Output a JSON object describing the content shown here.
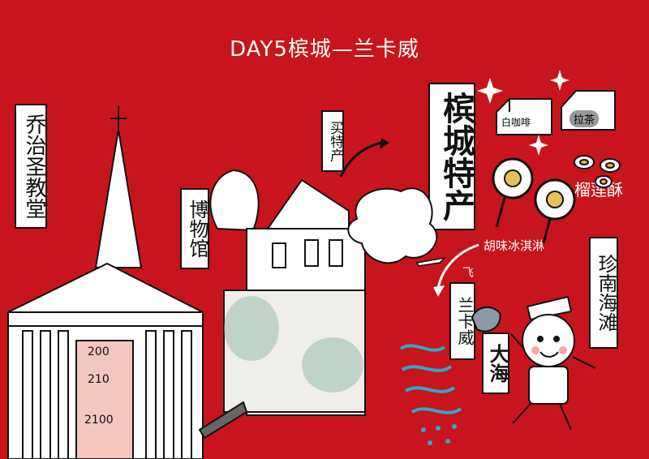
{
  "title": "DAY5槟城—兰卡威",
  "labels": {
    "church": "乔治圣教堂",
    "museum": "博物馆",
    "specialty_buy": "买特产",
    "penang_specialty": "槟城特产",
    "durian_pastry": "榴莲酥",
    "coconut_icecream": "胡味冰淇淋",
    "fly": "飞",
    "langkawi": "兰卡威",
    "sea": "大海",
    "beach": "珍南海滩",
    "white_coffee": "白咖啡",
    "pull_tea": "拉茶"
  },
  "church_scrawl": [
    "200",
    "210",
    "2100"
  ],
  "colors": {
    "background": "#c8141c",
    "ink": "#111111",
    "paper": "#ffffff",
    "wave": "#2fa8c8"
  }
}
